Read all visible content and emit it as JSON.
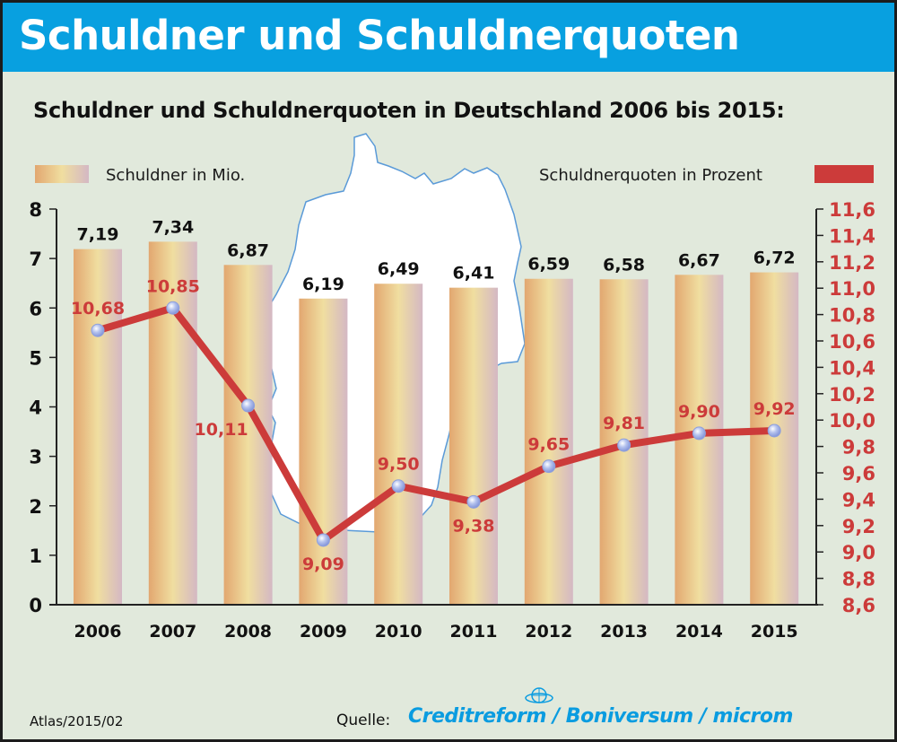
{
  "banner": {
    "title": "Schuldner und Schuldnerquoten"
  },
  "subtitle": "Schuldner und Schuldnerquoten in Deutschland 2006 bis 2015:",
  "legend": {
    "bars": "Schuldner in Mio.",
    "line": "Schuldnerquoten in Prozent"
  },
  "footer": {
    "code": "Atlas/2015/02",
    "source_label": "Quelle:",
    "source": "Creditreform / Boniversum / microm",
    "logo_text": "CREDITREFORM"
  },
  "colors": {
    "banner": "#08a0e0",
    "background": "#e1e9dc",
    "bar_left": "#e2a770",
    "bar_mid": "#f0dea0",
    "bar_right": "#d4b8c4",
    "line": "#cc3b3a",
    "marker": "#a8b8ea",
    "source": "#0a9ce0"
  },
  "chart_data": {
    "type": "bar+line",
    "title": "Schuldner und Schuldnerquoten in Deutschland 2006 bis 2015:",
    "categories": [
      "2006",
      "2007",
      "2008",
      "2009",
      "2010",
      "2011",
      "2012",
      "2013",
      "2014",
      "2015"
    ],
    "series": [
      {
        "name": "Schuldner in Mio.",
        "type": "bar",
        "axis": "left",
        "values": [
          7.19,
          7.34,
          6.87,
          6.19,
          6.49,
          6.41,
          6.59,
          6.58,
          6.67,
          6.72
        ],
        "labels": [
          "7,19",
          "7,34",
          "6,87",
          "6,19",
          "6,49",
          "6,41",
          "6,59",
          "6,58",
          "6,67",
          "6,72"
        ]
      },
      {
        "name": "Schuldnerquoten in Prozent",
        "type": "line",
        "axis": "right",
        "values": [
          10.68,
          10.85,
          10.11,
          9.09,
          9.5,
          9.38,
          9.65,
          9.81,
          9.9,
          9.92
        ],
        "labels": [
          "10,68",
          "10,85",
          "10,11",
          "9,09",
          "9,50",
          "9,38",
          "9,65",
          "9,81",
          "9,90",
          "9,92"
        ],
        "label_position": [
          "above",
          "above",
          "below",
          "below",
          "above",
          "below",
          "above",
          "above",
          "above",
          "above"
        ]
      }
    ],
    "y_left": {
      "ylim": [
        0,
        8
      ],
      "ticks": [
        "0",
        "1",
        "2",
        "3",
        "4",
        "5",
        "6",
        "7",
        "8"
      ],
      "tick_values": [
        0,
        1,
        2,
        3,
        4,
        5,
        6,
        7,
        8
      ]
    },
    "y_right": {
      "ylim": [
        8.6,
        11.6
      ],
      "ticks": [
        "8,6",
        "8,8",
        "9,0",
        "9,2",
        "9,4",
        "9,6",
        "9,8",
        "10,0",
        "10,2",
        "10,4",
        "10,6",
        "10,8",
        "11,0",
        "11,2",
        "11,4",
        "11,6"
      ],
      "tick_values": [
        8.6,
        8.8,
        9.0,
        9.2,
        9.4,
        9.6,
        9.8,
        10.0,
        10.2,
        10.4,
        10.6,
        10.8,
        11.0,
        11.2,
        11.4,
        11.6
      ]
    },
    "grid": false,
    "legend_position": "top"
  }
}
